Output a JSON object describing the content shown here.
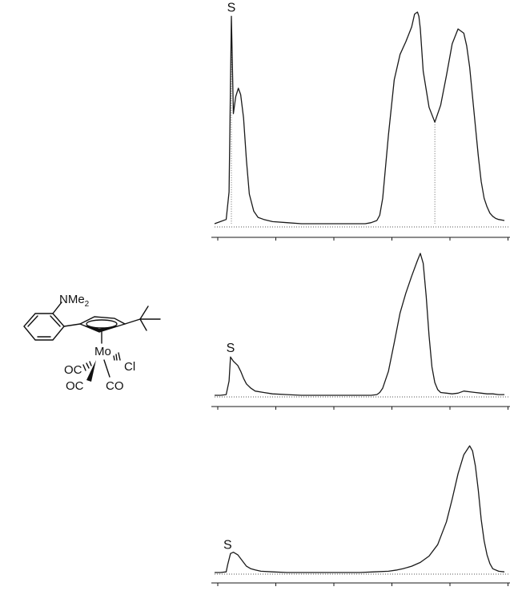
{
  "molecule": {
    "labels": {
      "amine": "NMe",
      "amine_sub": "2",
      "metal": "Mo",
      "chloride": "Cl",
      "carbonyl_1": "OC",
      "carbonyl_2": "OC",
      "carbonyl_3": "CO"
    }
  },
  "chart_data": [
    {
      "type": "line",
      "title": "",
      "xlabel": "",
      "ylabel": "",
      "xlim": [
        0,
        100
      ],
      "ylim": [
        0,
        100
      ],
      "grid": false,
      "peak_label": "S",
      "series": [
        {
          "x": [
            0,
            2,
            4,
            5,
            5.8,
            6.5,
            7.3,
            8.2,
            9,
            10,
            11,
            12,
            13.5,
            15,
            17,
            20,
            25,
            30,
            40,
            50,
            52,
            54,
            56,
            57,
            58,
            60,
            62,
            64,
            66,
            68,
            69,
            70,
            70.5,
            71,
            72,
            74,
            76,
            78,
            80,
            82,
            84,
            86,
            87,
            88,
            89,
            90,
            91,
            92,
            93,
            94,
            95,
            96,
            97,
            98,
            100
          ],
          "y": [
            0,
            1,
            2,
            15,
            98,
            52,
            60,
            64,
            61,
            50,
            30,
            14,
            6,
            3,
            2,
            1,
            0.5,
            0,
            0,
            0,
            0,
            0.5,
            1.5,
            4,
            12,
            42,
            68,
            80,
            86,
            93,
            99,
            100,
            98,
            92,
            72,
            55,
            48,
            56,
            70,
            85,
            92,
            90,
            84,
            74,
            60,
            46,
            32,
            20,
            12,
            8,
            5,
            3.5,
            2.5,
            2,
            1.5
          ]
        }
      ],
      "annotations": [
        {
          "text": "S",
          "x": 5.8
        }
      ]
    },
    {
      "type": "line",
      "title": "",
      "xlabel": "",
      "ylabel": "",
      "xlim": [
        0,
        100
      ],
      "ylim": [
        0,
        100
      ],
      "grid": false,
      "peak_label": "S",
      "series": [
        {
          "x": [
            0,
            2,
            4,
            5,
            5.5,
            6.5,
            8,
            9,
            10,
            11,
            12.5,
            14,
            17,
            20,
            25,
            30,
            40,
            50,
            52,
            54,
            56,
            57,
            58,
            60,
            62,
            64,
            66,
            68,
            70,
            71,
            72,
            73,
            74,
            75,
            76,
            77,
            78,
            80,
            82,
            84,
            86,
            88,
            90,
            92,
            94,
            96,
            98,
            100
          ],
          "y": [
            0,
            0,
            0.5,
            10,
            27,
            24,
            21,
            17,
            12,
            8,
            5,
            3,
            2,
            1,
            0.5,
            0,
            0,
            0,
            0,
            0,
            0.5,
            2,
            5,
            17,
            37,
            58,
            72,
            84,
            95,
            100,
            93,
            70,
            42,
            20,
            9,
            4,
            2,
            1.5,
            1,
            1.5,
            3,
            2.5,
            2,
            1.5,
            1,
            1,
            0.5,
            0.5
          ]
        }
      ],
      "annotations": [
        {
          "text": "S",
          "x": 5.5
        }
      ]
    },
    {
      "type": "line",
      "title": "",
      "xlabel": "",
      "ylabel": "",
      "xlim": [
        0,
        100
      ],
      "ylim": [
        0,
        100
      ],
      "grid": false,
      "peak_label": "S",
      "series": [
        {
          "x": [
            0,
            2,
            4,
            4.5,
            5.5,
            6.5,
            8,
            9,
            10,
            11,
            12.5,
            14,
            16,
            20,
            25,
            30,
            40,
            50,
            55,
            60,
            63,
            65,
            68,
            71,
            74,
            77,
            80,
            82,
            84,
            86,
            88,
            89,
            90,
            91,
            92,
            93,
            94,
            95,
            96,
            98,
            100
          ],
          "y": [
            0,
            0,
            0.5,
            6,
            15,
            16,
            14,
            11,
            8,
            5,
            3,
            2,
            1,
            0.5,
            0,
            0,
            0,
            0,
            0.5,
            1,
            2,
            3,
            5,
            8,
            13,
            22,
            40,
            58,
            78,
            93,
            100,
            96,
            84,
            65,
            42,
            25,
            14,
            7,
            3,
            1,
            0.5
          ]
        }
      ],
      "annotations": [
        {
          "text": "S",
          "x": 4.5
        }
      ]
    }
  ]
}
